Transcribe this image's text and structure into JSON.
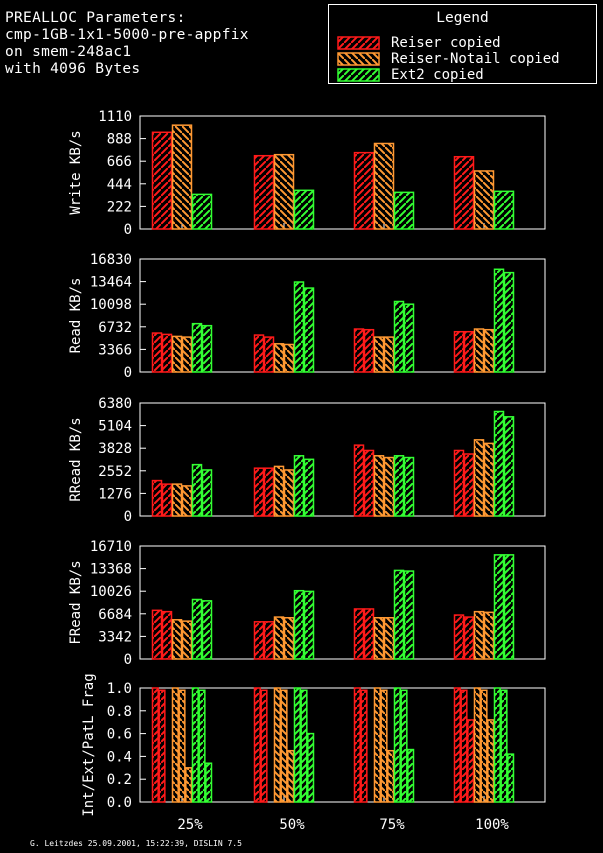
{
  "header": {
    "line1": "PREALLOC Parameters:",
    "line2": "cmp-1GB-1x1-5000-pre-appfix",
    "line3": "on smem-248ac1",
    "line4": "with 4096 Bytes"
  },
  "legend": {
    "title": "Legend",
    "items": [
      {
        "label": "Reiser copied",
        "color": "#ff1a1a"
      },
      {
        "label": "Reiser-Notail copied",
        "color": "#ff9933"
      },
      {
        "label": "Ext2 copied",
        "color": "#33ff33"
      }
    ]
  },
  "footer": "G. Leitzdes 25.09.2001, 15:22:39, DISLIN 7.5",
  "chart_data": [
    {
      "type": "bar",
      "ylabel": "Write KB/s",
      "categories": [
        "25%",
        "50%",
        "75%",
        "100%"
      ],
      "ylim": [
        0,
        1110
      ],
      "yticks": [
        "0",
        "222",
        "444",
        "666",
        "888",
        "1110"
      ],
      "series": [
        {
          "name": "Reiser copied",
          "values": [
            [
              950
            ],
            [
              720
            ],
            [
              750
            ],
            [
              710
            ]
          ]
        },
        {
          "name": "Reiser-Notail copied",
          "values": [
            [
              1020
            ],
            [
              730
            ],
            [
              840
            ],
            [
              570
            ]
          ]
        },
        {
          "name": "Ext2 copied",
          "values": [
            [
              340
            ],
            [
              380
            ],
            [
              360
            ],
            [
              370
            ]
          ]
        }
      ]
    },
    {
      "type": "bar",
      "ylabel": "Read KB/s",
      "categories": [
        "25%",
        "50%",
        "75%",
        "100%"
      ],
      "ylim": [
        0,
        16830
      ],
      "yticks": [
        "0",
        "3366",
        "6732",
        "10098",
        "13464",
        "16830"
      ],
      "series": [
        {
          "name": "Reiser copied",
          "values": [
            [
              5800,
              5600
            ],
            [
              5500,
              5200
            ],
            [
              6400,
              6300
            ],
            [
              6000,
              6000
            ]
          ]
        },
        {
          "name": "Reiser-Notail copied",
          "values": [
            [
              5300,
              5200
            ],
            [
              4200,
              4100
            ],
            [
              5200,
              5200
            ],
            [
              6400,
              6300
            ]
          ]
        },
        {
          "name": "Ext2 copied",
          "values": [
            [
              7200,
              6900
            ],
            [
              13400,
              12500
            ],
            [
              10500,
              10100
            ],
            [
              15300,
              14800
            ]
          ]
        }
      ]
    },
    {
      "type": "bar",
      "ylabel": "RRead KB/s",
      "categories": [
        "25%",
        "50%",
        "75%",
        "100%"
      ],
      "ylim": [
        0,
        6380
      ],
      "yticks": [
        "0",
        "1276",
        "2552",
        "3828",
        "5104",
        "6380"
      ],
      "series": [
        {
          "name": "Reiser copied",
          "values": [
            [
              2000,
              1800
            ],
            [
              2700,
              2700
            ],
            [
              4000,
              3700
            ],
            [
              3700,
              3500
            ]
          ]
        },
        {
          "name": "Reiser-Notail copied",
          "values": [
            [
              1800,
              1700
            ],
            [
              2800,
              2600
            ],
            [
              3400,
              3300
            ],
            [
              4300,
              4100
            ]
          ]
        },
        {
          "name": "Ext2 copied",
          "values": [
            [
              2900,
              2600
            ],
            [
              3400,
              3200
            ],
            [
              3400,
              3300
            ],
            [
              5900,
              5600
            ]
          ]
        }
      ]
    },
    {
      "type": "bar",
      "ylabel": "FRead KB/s",
      "categories": [
        "25%",
        "50%",
        "75%",
        "100%"
      ],
      "ylim": [
        0,
        16710
      ],
      "yticks": [
        "0",
        "3342",
        "6684",
        "10026",
        "13368",
        "16710"
      ],
      "series": [
        {
          "name": "Reiser copied",
          "values": [
            [
              7200,
              7000
            ],
            [
              5500,
              5500
            ],
            [
              7400,
              7400
            ],
            [
              6500,
              6200
            ]
          ]
        },
        {
          "name": "Reiser-Notail copied",
          "values": [
            [
              5800,
              5600
            ],
            [
              6200,
              6100
            ],
            [
              6100,
              6100
            ],
            [
              7000,
              6900
            ]
          ]
        },
        {
          "name": "Ext2 copied",
          "values": [
            [
              8800,
              8600
            ],
            [
              10100,
              10000
            ],
            [
              13100,
              13000
            ],
            [
              15400,
              15400
            ]
          ]
        }
      ]
    },
    {
      "type": "bar",
      "ylabel": "Int/Ext/PatL Frag",
      "categories": [
        "25%",
        "50%",
        "75%",
        "100%"
      ],
      "ylim": [
        0,
        1.0
      ],
      "yticks": [
        "0.0",
        "0.2",
        "0.4",
        "0.6",
        "0.8",
        "1.0"
      ],
      "series": [
        {
          "name": "Reiser copied",
          "values": [
            [
              1.0,
              0.98,
              0.0
            ],
            [
              1.0,
              0.98,
              0.0
            ],
            [
              1.0,
              0.98,
              0.0
            ],
            [
              1.0,
              0.98,
              0.72
            ]
          ]
        },
        {
          "name": "Reiser-Notail copied",
          "values": [
            [
              1.0,
              0.98,
              0.3
            ],
            [
              1.0,
              0.98,
              0.45
            ],
            [
              1.0,
              0.98,
              0.45
            ],
            [
              1.0,
              0.98,
              0.72
            ]
          ]
        },
        {
          "name": "Ext2 copied",
          "values": [
            [
              1.0,
              0.98,
              0.34
            ],
            [
              1.0,
              0.98,
              0.6
            ],
            [
              1.0,
              0.98,
              0.46
            ],
            [
              1.0,
              0.98,
              0.42
            ]
          ]
        }
      ]
    }
  ]
}
